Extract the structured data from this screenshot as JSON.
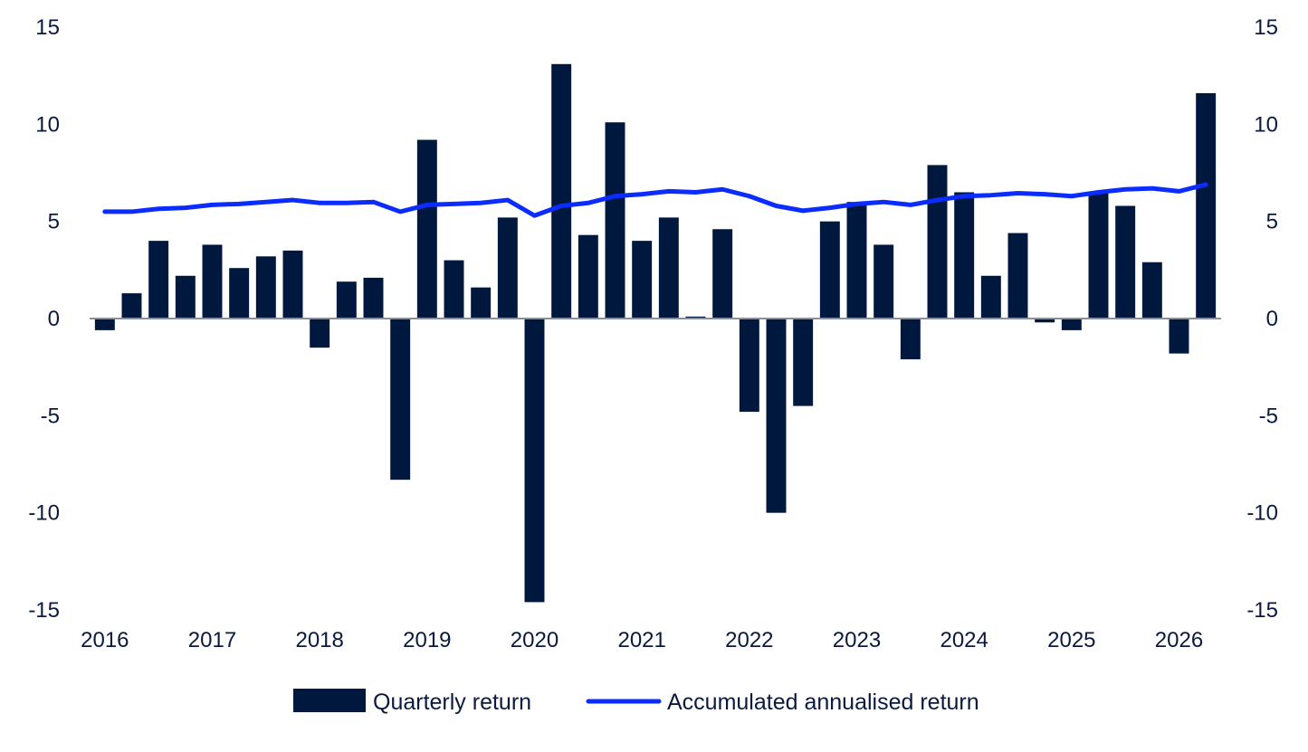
{
  "chart_data": {
    "type": "bar",
    "title": "",
    "xlabel": "",
    "ylabel": "",
    "ylim": [
      -15,
      15
    ],
    "y_ticks": [
      15,
      10,
      5,
      0,
      -5,
      -10,
      -15
    ],
    "y_tick_labels": [
      "15",
      "10",
      "5",
      "0",
      "-5",
      "-10",
      "-15"
    ],
    "x_tick_labels": [
      "2016",
      "2017",
      "2018",
      "2019",
      "2020",
      "2021",
      "2022",
      "2023",
      "2024",
      "2025",
      "2026"
    ],
    "grid": false,
    "legend_position": "bottom-center",
    "categories": [
      "2016 Q1",
      "2016 Q2",
      "2016 Q3",
      "2016 Q4",
      "2017 Q1",
      "2017 Q2",
      "2017 Q3",
      "2017 Q4",
      "2018 Q1",
      "2018 Q2",
      "2018 Q3",
      "2018 Q4",
      "2019 Q1",
      "2019 Q2",
      "2019 Q3",
      "2019 Q4",
      "2020 Q1",
      "2020 Q2",
      "2020 Q3",
      "2020 Q4",
      "2021 Q1",
      "2021 Q2",
      "2021 Q3",
      "2021 Q4",
      "2022 Q1",
      "2022 Q2",
      "2022 Q3",
      "2022 Q4",
      "2023 Q1",
      "2023 Q2",
      "2023 Q3",
      "2023 Q4",
      "2024 Q1",
      "2024 Q2",
      "2024 Q3",
      "2024 Q4",
      "2025 Q1",
      "2025 Q2",
      "2025 Q3",
      "2025 Q4",
      "2026 Q1",
      "2026 Q2"
    ],
    "series": [
      {
        "name": "Quarterly return",
        "type": "bar",
        "color": "#00183d",
        "values": [
          -0.6,
          1.3,
          4.0,
          2.2,
          3.8,
          2.6,
          3.2,
          3.5,
          -1.5,
          1.9,
          2.1,
          -8.3,
          9.2,
          3.0,
          1.6,
          5.2,
          -14.6,
          13.1,
          4.3,
          10.1,
          4.0,
          5.2,
          0.1,
          4.6,
          -4.8,
          -10.0,
          -4.5,
          5.0,
          6.0,
          3.8,
          -2.1,
          7.9,
          6.5,
          2.2,
          4.4,
          -0.2,
          -0.6,
          6.5,
          5.8,
          2.9,
          -1.8,
          11.6
        ]
      },
      {
        "name": "Accumulated annualised return",
        "type": "line",
        "color": "#0a2cff",
        "values": [
          5.5,
          5.5,
          5.65,
          5.7,
          5.85,
          5.9,
          6.0,
          6.1,
          5.95,
          5.95,
          6.0,
          5.5,
          5.85,
          5.9,
          5.95,
          6.1,
          5.3,
          5.8,
          5.95,
          6.3,
          6.4,
          6.55,
          6.5,
          6.65,
          6.3,
          5.8,
          5.55,
          5.7,
          5.9,
          6.0,
          5.85,
          6.1,
          6.3,
          6.35,
          6.45,
          6.4,
          6.3,
          6.5,
          6.65,
          6.7,
          6.55,
          6.9
        ]
      }
    ]
  },
  "legend": {
    "bar_label": "Quarterly return",
    "line_label": "Accumulated annualised return"
  },
  "colors": {
    "bar": "#00183d",
    "line": "#0a2cff",
    "axis": "#8a8f9c",
    "text": "#0a1a3f"
  }
}
